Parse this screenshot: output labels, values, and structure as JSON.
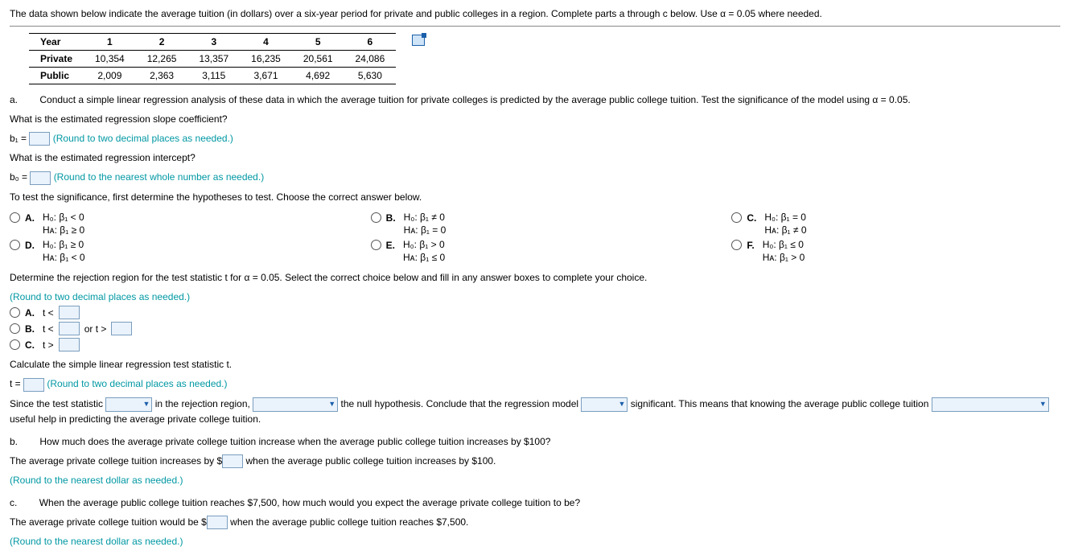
{
  "intro": "The data shown below indicate the average tuition (in dollars) over a six-year period for private and public colleges in a region. Complete parts a through c below. Use α = 0.05 where needed.",
  "table": {
    "headers": [
      "Year",
      "1",
      "2",
      "3",
      "4",
      "5",
      "6"
    ],
    "rows": [
      {
        "label": "Private",
        "cells": [
          "10,354",
          "12,265",
          "13,357",
          "16,235",
          "20,561",
          "24,086"
        ]
      },
      {
        "label": "Public",
        "cells": [
          "2,009",
          "2,363",
          "3,115",
          "3,671",
          "4,692",
          "5,630"
        ]
      }
    ]
  },
  "a": {
    "label": "a.",
    "text": "Conduct a simple linear regression analysis of these data in which the average tuition for private colleges is predicted by the average public college tuition. Test the significance of the model using α = 0.05.",
    "q1": "What is the estimated regression slope coefficient?",
    "b1_prefix": "b₁ =",
    "b1_hint": "(Round to two decimal places as needed.)",
    "q2": "What is the estimated regression intercept?",
    "b0_prefix": "b₀ =",
    "b0_hint": "(Round to the nearest whole number as needed.)",
    "hyp_intro": "To test the significance, first determine the hypotheses to test. Choose the correct answer below.",
    "opts": {
      "A": {
        "l": "A.",
        "h0": "H₀: β₁ < 0",
        "ha": "Hᴀ: β₁ ≥ 0"
      },
      "B": {
        "l": "B.",
        "h0": "H₀: β₁ ≠ 0",
        "ha": "Hᴀ: β₁ = 0"
      },
      "C": {
        "l": "C.",
        "h0": "H₀: β₁ = 0",
        "ha": "Hᴀ: β₁ ≠ 0"
      },
      "D": {
        "l": "D.",
        "h0": "H₀: β₁ ≥ 0",
        "ha": "Hᴀ: β₁ < 0"
      },
      "E": {
        "l": "E.",
        "h0": "H₀: β₁ > 0",
        "ha": "Hᴀ: β₁ ≤ 0"
      },
      "F": {
        "l": "F.",
        "h0": "H₀: β₁ ≤ 0",
        "ha": "Hᴀ: β₁ > 0"
      }
    },
    "rej_intro": "Determine the rejection region for the test statistic t for α = 0.05. Select the correct choice below and fill in any answer boxes to complete your choice.",
    "rej_hint": "(Round to two decimal places as needed.)",
    "rej": {
      "A": {
        "l": "A.",
        "pre": "t <"
      },
      "B": {
        "l": "B.",
        "pre": "t <",
        "mid": "or t >"
      },
      "C": {
        "l": "C.",
        "pre": "t >"
      }
    },
    "calc": "Calculate the simple linear regression test statistic t.",
    "t_prefix": "t =",
    "t_hint": "(Round to two decimal places as needed.)",
    "since": {
      "p1": "Since the test statistic",
      "p2": "in the rejection region,",
      "p3": "the null hypothesis. Conclude that the regression model",
      "p4": "significant. This means that knowing the average public college tuition",
      "p5": "useful help in predicting the average private college tuition."
    }
  },
  "b": {
    "label": "b.",
    "text": "How much does the average private college tuition increase when the average public college tuition increases by $100?",
    "ans_pre": "The average private college tuition increases by $",
    "ans_post": "when the average public college tuition increases by $100.",
    "hint": "(Round to the nearest dollar as needed.)"
  },
  "c": {
    "label": "c.",
    "text": "When the average public college tuition reaches $7,500, how much would you expect the average private college tuition to be?",
    "ans_pre": "The average private college tuition would be $",
    "ans_post": "when the average public college tuition reaches $7,500.",
    "hint": "(Round to the nearest dollar as needed.)"
  }
}
